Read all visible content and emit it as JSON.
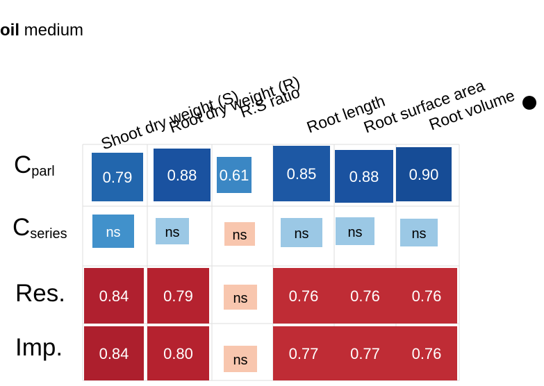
{
  "header": {
    "bold": "oil",
    "rest": " medium"
  },
  "chart_data": {
    "type": "heatmap",
    "columns": [
      "Shoot dry weight (S)",
      "Root dry weight (R)",
      "R:S ratio",
      "Root length",
      "Root surface area",
      "Root volume"
    ],
    "rows": [
      {
        "main": "C",
        "sub": "parl"
      },
      {
        "main": "C",
        "sub": "series"
      },
      {
        "main": "Res.",
        "sub": ""
      },
      {
        "main": "Imp.",
        "sub": ""
      }
    ],
    "values": [
      [
        0.79,
        0.88,
        0.61,
        0.85,
        0.88,
        0.9
      ],
      [
        null,
        null,
        null,
        null,
        null,
        null
      ],
      [
        0.84,
        0.79,
        null,
        0.76,
        0.76,
        0.76
      ],
      [
        0.84,
        0.8,
        null,
        0.77,
        0.77,
        0.76
      ]
    ],
    "labels": [
      [
        "0.79",
        "0.88",
        "0.61",
        "0.85",
        "0.88",
        "0.90"
      ],
      [
        "ns",
        "ns",
        "ns",
        "ns",
        "ns",
        "ns"
      ],
      [
        "0.84",
        "0.79",
        "ns",
        "0.76",
        "0.76",
        "0.76"
      ],
      [
        "0.84",
        "0.80",
        "ns",
        "0.77",
        "0.77",
        "0.76"
      ]
    ],
    "colors": [
      [
        "#2266ad",
        "#1a52a0",
        "#3b87c4",
        "#1d58a4",
        "#1a52a0",
        "#164c96"
      ],
      [
        "#4191cb",
        "#9bc8e5",
        "#f8c6ae",
        "#9bc8e5",
        "#9bc8e5",
        "#9bc8e5"
      ],
      [
        "#b0202f",
        "#b5222f",
        "#f8c6ae",
        "#bf2c35",
        "#bf2c35",
        "#bf2c35"
      ],
      [
        "#ad1f2d",
        "#b5222f",
        "#f8c6ae",
        "#bf2c35",
        "#bf2c35",
        "#bf2c35"
      ]
    ],
    "light_text_color": "#ffffff",
    "dark_text_color": "#000000"
  }
}
